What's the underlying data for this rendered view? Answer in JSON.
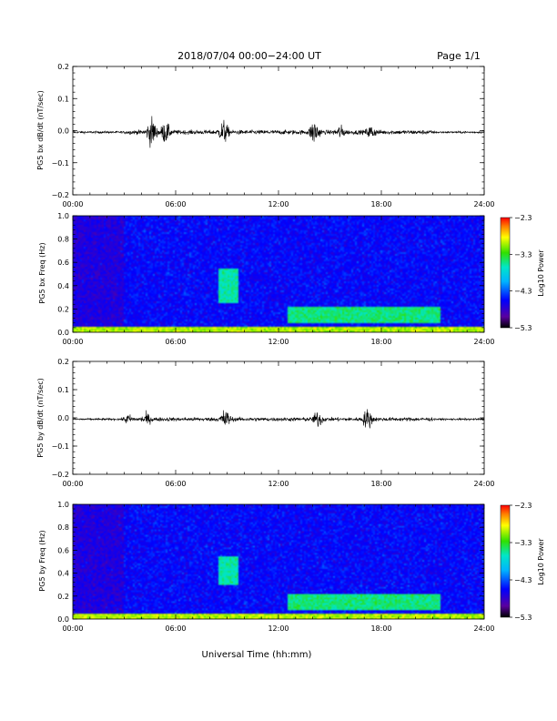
{
  "header": {
    "title": "2018/07/04  00:00−24:00 UT",
    "page": "Page 1/1"
  },
  "footer": {
    "xlabel": "Universal Time (hh:mm)"
  },
  "chart_data": [
    {
      "type": "line",
      "name": "bx waveform",
      "ylabel": "PG5 bx dB/dt (nT/sec)",
      "xlim": [
        0,
        24
      ],
      "ylim": [
        -0.2,
        0.2
      ],
      "x_ticks": [
        "00:00",
        "06:00",
        "12:00",
        "18:00",
        "24:00"
      ],
      "y_ticks": [
        "0.2",
        "0.1",
        "0.0",
        "−0.1",
        "−0.2"
      ],
      "y_tick_values": [
        0.2,
        0.1,
        0.0,
        -0.1,
        -0.2
      ],
      "baseline": -0.005,
      "bursts": [
        {
          "t": 4.6,
          "amp": 0.05
        },
        {
          "t": 5.4,
          "amp": 0.035
        },
        {
          "t": 8.8,
          "amp": 0.04
        },
        {
          "t": 14.1,
          "amp": 0.045
        },
        {
          "t": 15.6,
          "amp": 0.02
        },
        {
          "t": 17.4,
          "amp": 0.02
        }
      ]
    },
    {
      "type": "heatmap",
      "name": "bx spectrogram",
      "ylabel": "PG5 bx Freq (Hz)",
      "xlim": [
        0,
        24
      ],
      "ylim": [
        0,
        1.0
      ],
      "x_ticks": [
        "00:00",
        "06:00",
        "12:00",
        "18:00",
        "24:00"
      ],
      "y_ticks": [
        "1.0",
        "0.8",
        "0.6",
        "0.4",
        "0.2",
        "0.0"
      ],
      "y_tick_values": [
        1.0,
        0.8,
        0.6,
        0.4,
        0.2,
        0.0
      ],
      "colorbar": {
        "label": "Log10 Power",
        "ticks": [
          "−2.3",
          "−3.3",
          "−4.3",
          "−5.3"
        ],
        "range": [
          -5.3,
          -2.3
        ]
      },
      "features": [
        {
          "t": [
            8.5,
            9.7
          ],
          "f": [
            0.25,
            0.55
          ],
          "level": -3.6
        },
        {
          "t": [
            12.5,
            21.5
          ],
          "f": [
            0.08,
            0.22
          ],
          "level": -3.5
        },
        {
          "t": [
            0,
            24
          ],
          "f": [
            0.0,
            0.05
          ],
          "level": -3.0
        }
      ]
    },
    {
      "type": "line",
      "name": "by waveform",
      "ylabel": "PG5 by dB/dt (nT/sec)",
      "xlim": [
        0,
        24
      ],
      "ylim": [
        -0.2,
        0.2
      ],
      "x_ticks": [
        "00:00",
        "06:00",
        "12:00",
        "18:00",
        "24:00"
      ],
      "y_ticks": [
        "0.2",
        "0.1",
        "0.0",
        "−0.1",
        "−0.2"
      ],
      "y_tick_values": [
        0.2,
        0.1,
        0.0,
        -0.1,
        -0.2
      ],
      "baseline": -0.005,
      "bursts": [
        {
          "t": 3.2,
          "amp": 0.015
        },
        {
          "t": 4.3,
          "amp": 0.02
        },
        {
          "t": 8.9,
          "amp": 0.04
        },
        {
          "t": 14.3,
          "amp": 0.03
        },
        {
          "t": 17.2,
          "amp": 0.04
        }
      ]
    },
    {
      "type": "heatmap",
      "name": "by spectrogram",
      "ylabel": "PG5 by Freq (Hz)",
      "xlim": [
        0,
        24
      ],
      "ylim": [
        0,
        1.0
      ],
      "x_ticks": [
        "00:00",
        "06:00",
        "12:00",
        "18:00",
        "24:00"
      ],
      "y_ticks": [
        "1.0",
        "0.8",
        "0.6",
        "0.4",
        "0.2",
        "0.0"
      ],
      "y_tick_values": [
        1.0,
        0.8,
        0.6,
        0.4,
        0.2,
        0.0
      ],
      "colorbar": {
        "label": "Log10 Power",
        "ticks": [
          "−2.3",
          "−3.3",
          "−4.3",
          "−5.3"
        ],
        "range": [
          -5.3,
          -2.3
        ]
      },
      "features": [
        {
          "t": [
            8.5,
            9.7
          ],
          "f": [
            0.3,
            0.55
          ],
          "level": -3.6
        },
        {
          "t": [
            12.5,
            21.5
          ],
          "f": [
            0.08,
            0.22
          ],
          "level": -3.5
        },
        {
          "t": [
            0,
            24
          ],
          "f": [
            0.0,
            0.05
          ],
          "level": -3.0
        }
      ]
    }
  ]
}
